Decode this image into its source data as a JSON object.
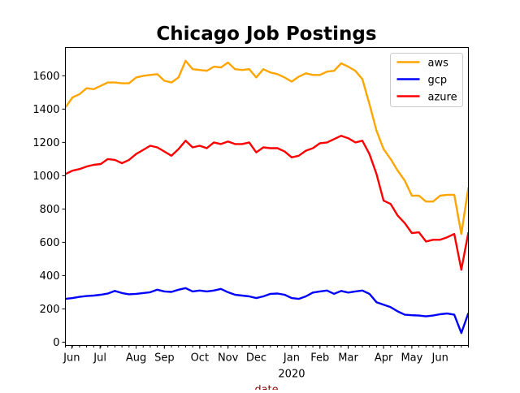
{
  "chart_data": {
    "type": "line",
    "title": "Chicago Job Postings",
    "xlabel": "date",
    "ylabel": "",
    "x_unit": "week index (weekly samples, late May 2019 to early Jul 2020)",
    "xlim": [
      0,
      57
    ],
    "ylim": [
      -20,
      1770
    ],
    "yticks": [
      0,
      200,
      400,
      600,
      800,
      1000,
      1200,
      1400,
      1600
    ],
    "xticks": [
      {
        "label": "Jun",
        "at": 0.9
      },
      {
        "label": "Jul",
        "at": 4.9
      },
      {
        "label": "Aug",
        "at": 10
      },
      {
        "label": "Sep",
        "at": 14
      },
      {
        "label": "Oct",
        "at": 19
      },
      {
        "label": "Nov",
        "at": 23
      },
      {
        "label": "Dec",
        "at": 27
      },
      {
        "label": "Jan",
        "at": 32,
        "sublabel": "2020"
      },
      {
        "label": "Feb",
        "at": 36
      },
      {
        "label": "Mar",
        "at": 40
      },
      {
        "label": "Apr",
        "at": 45
      },
      {
        "label": "May",
        "at": 49
      },
      {
        "label": "Jun",
        "at": 53
      }
    ],
    "legend_position": "top-right",
    "grid": false,
    "series": [
      {
        "name": "aws",
        "color": "#FFA500",
        "values": [
          1410,
          1470,
          1490,
          1525,
          1520,
          1540,
          1560,
          1560,
          1555,
          1555,
          1590,
          1600,
          1605,
          1610,
          1570,
          1560,
          1590,
          1690,
          1640,
          1635,
          1630,
          1655,
          1650,
          1680,
          1640,
          1635,
          1640,
          1590,
          1640,
          1620,
          1610,
          1590,
          1565,
          1595,
          1615,
          1605,
          1605,
          1625,
          1630,
          1675,
          1655,
          1630,
          1580,
          1430,
          1270,
          1160,
          1100,
          1030,
          970,
          880,
          880,
          845,
          845,
          880,
          885,
          885,
          650,
          930
        ]
      },
      {
        "name": "gcp",
        "color": "#0000FF",
        "values": [
          260,
          265,
          272,
          277,
          280,
          285,
          292,
          308,
          295,
          288,
          290,
          295,
          300,
          315,
          305,
          302,
          315,
          325,
          305,
          310,
          305,
          310,
          320,
          300,
          285,
          280,
          275,
          265,
          275,
          290,
          292,
          285,
          265,
          260,
          275,
          298,
          305,
          310,
          290,
          308,
          298,
          305,
          310,
          290,
          240,
          225,
          210,
          185,
          165,
          162,
          160,
          155,
          160,
          168,
          172,
          165,
          55,
          175
        ]
      },
      {
        "name": "azure",
        "color": "#FF0000",
        "values": [
          1010,
          1030,
          1040,
          1055,
          1065,
          1070,
          1100,
          1095,
          1075,
          1095,
          1130,
          1155,
          1180,
          1170,
          1145,
          1120,
          1160,
          1210,
          1170,
          1180,
          1165,
          1200,
          1190,
          1205,
          1190,
          1190,
          1200,
          1140,
          1170,
          1165,
          1165,
          1145,
          1110,
          1120,
          1150,
          1165,
          1195,
          1200,
          1220,
          1240,
          1225,
          1200,
          1210,
          1130,
          1010,
          850,
          830,
          760,
          715,
          655,
          660,
          605,
          615,
          615,
          630,
          650,
          435,
          660
        ]
      }
    ]
  }
}
